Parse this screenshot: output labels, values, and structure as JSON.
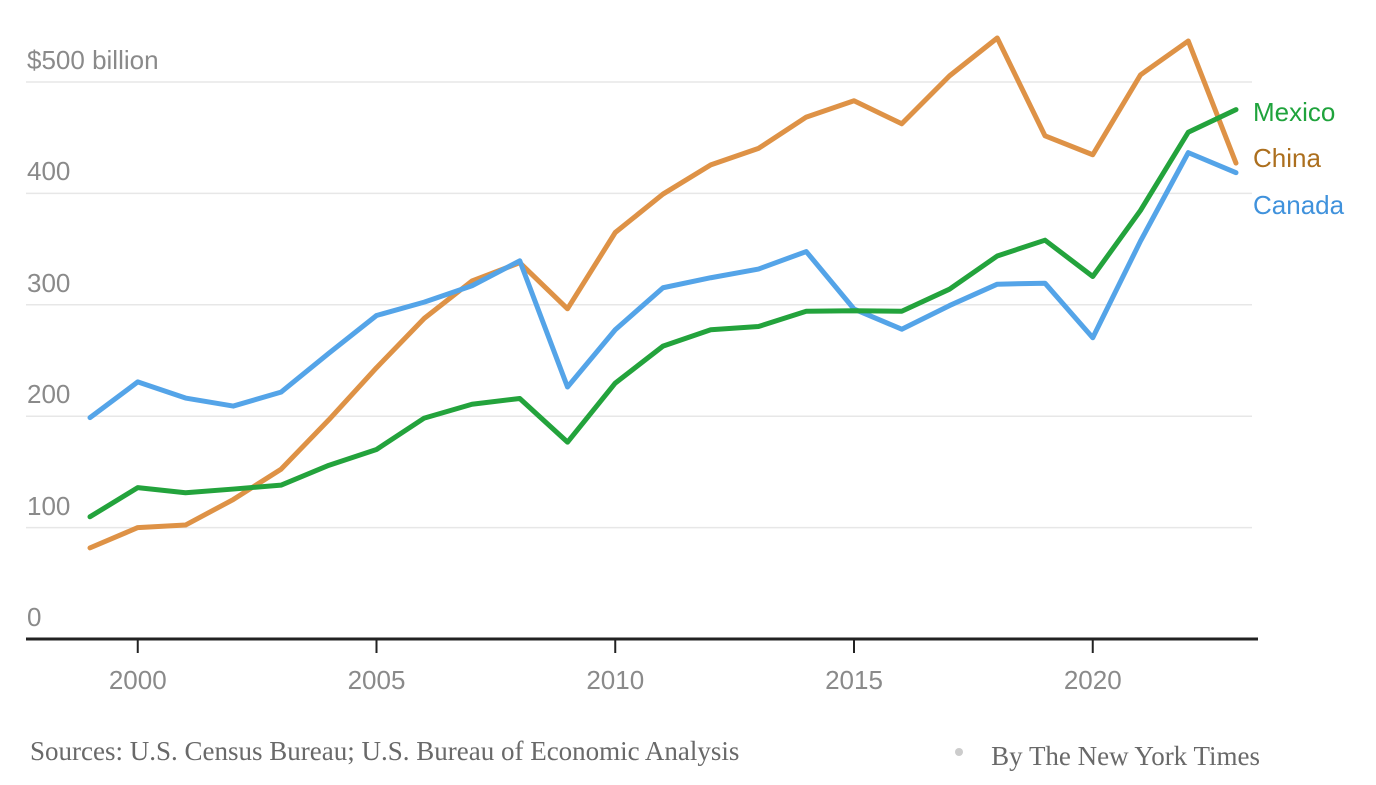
{
  "chart_data": {
    "type": "line",
    "title": "$500 billion",
    "unit_label": "$500 billion",
    "x": [
      1999,
      2000,
      2001,
      2002,
      2003,
      2004,
      2005,
      2006,
      2007,
      2008,
      2009,
      2010,
      2011,
      2012,
      2013,
      2014,
      2015,
      2016,
      2017,
      2018,
      2019,
      2020,
      2021,
      2022,
      2023
    ],
    "series": [
      {
        "name": "Mexico",
        "line_color": "#23a33c",
        "label_color": "#1fa33c",
        "values": [
          109.7,
          135.9,
          131.3,
          134.6,
          138.1,
          155.9,
          170.1,
          198.3,
          210.7,
          215.9,
          176.7,
          229.7,
          262.9,
          277.6,
          280.5,
          294.2,
          294.7,
          294.2,
          314.0,
          343.8,
          358.0,
          325.4,
          384.7,
          454.9,
          475.2
        ]
      },
      {
        "name": "China",
        "line_color": "#de9246",
        "label_color": "#ac6f1e",
        "values": [
          81.8,
          100.0,
          102.3,
          125.2,
          152.4,
          196.7,
          243.5,
          287.8,
          321.4,
          337.8,
          296.4,
          364.9,
          399.4,
          425.6,
          440.4,
          468.5,
          483.2,
          462.5,
          505.5,
          539.5,
          451.7,
          434.7,
          506.4,
          536.8,
          427.2
        ]
      },
      {
        "name": "Canada",
        "line_color": "#54a4e8",
        "label_color": "#4092dc",
        "values": [
          198.7,
          230.8,
          216.3,
          209.1,
          221.6,
          256.4,
          290.4,
          302.4,
          317.1,
          339.5,
          226.2,
          277.6,
          315.3,
          324.3,
          332.1,
          347.8,
          296.2,
          278.1,
          299.3,
          318.5,
          319.4,
          270.4,
          357.2,
          436.6,
          418.6
        ]
      }
    ],
    "yticks": [
      0,
      100,
      200,
      300,
      400,
      500
    ],
    "ytick_labels": [
      "0",
      "100",
      "200",
      "300",
      "400",
      "$500 billion"
    ],
    "xticks": [
      2000,
      2005,
      2010,
      2015,
      2020
    ],
    "xtick_labels": [
      "2000",
      "2005",
      "2010",
      "2015",
      "2020"
    ],
    "ylim": [
      0,
      500
    ],
    "grid": true,
    "legend_position": "right",
    "colors": {
      "gridline": "#e7e7e7",
      "axis_line": "#222222",
      "tick_label": "#8a8a8a",
      "footer_text": "#696969"
    },
    "draw_order": [
      1,
      2,
      0
    ]
  },
  "footer": {
    "sources": "Sources: U.S. Census Bureau; U.S. Bureau of Economic Analysis",
    "separator_dot": "dot-icon",
    "byline": "By The New York Times"
  }
}
